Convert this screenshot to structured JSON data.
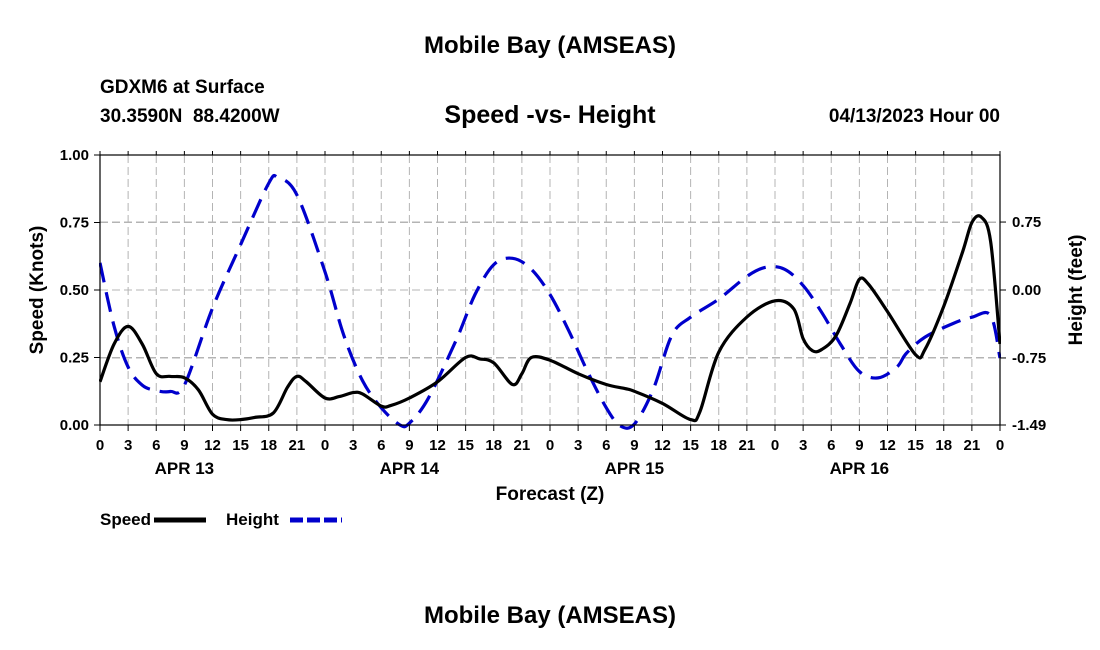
{
  "page": {
    "title_top": "Mobile Bay (AMSEAS)",
    "title_bottom": "Mobile Bay (AMSEAS)",
    "station_line": "GDXM6 at Surface",
    "coords_line": "30.3590N  88.4200W",
    "date_line": "04/13/2023 Hour 00"
  },
  "chart_data": {
    "type": "line",
    "title": "Speed -vs- Height",
    "xlabel": "Forecast (Z)",
    "ylabel": "Speed (Knots)",
    "y2label": "Height (feet)",
    "xlim": [
      0,
      96
    ],
    "ylim": [
      0,
      1
    ],
    "y2lim": [
      -1.49,
      1.49
    ],
    "x_tick_labels": [
      "0",
      "3",
      "6",
      "9",
      "12",
      "15",
      "18",
      "21",
      "0",
      "3",
      "6",
      "9",
      "12",
      "15",
      "18",
      "21",
      "0",
      "3",
      "6",
      "9",
      "12",
      "15",
      "18",
      "21",
      "0",
      "3",
      "6",
      "9",
      "12",
      "15",
      "18",
      "21",
      "0"
    ],
    "date_labels": [
      {
        "label": "APR 13",
        "x": 9
      },
      {
        "label": "APR 14",
        "x": 33
      },
      {
        "label": "APR 15",
        "x": 57
      },
      {
        "label": "APR 16",
        "x": 81
      }
    ],
    "y_ticks": [
      "0.00",
      "0.25",
      "0.50",
      "0.75",
      "1.00"
    ],
    "y2_ticks": [
      "-1.49",
      "-0.75",
      "0.00",
      "0.75"
    ],
    "series": [
      {
        "name": "Speed",
        "axis": "left",
        "color": "#000000",
        "dash": "solid",
        "points": [
          [
            0,
            0.16
          ],
          [
            1.5,
            0.3
          ],
          [
            3,
            0.365
          ],
          [
            4.5,
            0.3
          ],
          [
            6,
            0.19
          ],
          [
            7.5,
            0.18
          ],
          [
            9,
            0.175
          ],
          [
            10.5,
            0.13
          ],
          [
            12,
            0.04
          ],
          [
            13.5,
            0.02
          ],
          [
            15,
            0.02
          ],
          [
            16.5,
            0.028
          ],
          [
            18.5,
            0.045
          ],
          [
            20,
            0.14
          ],
          [
            21,
            0.18
          ],
          [
            22,
            0.16
          ],
          [
            24,
            0.1
          ],
          [
            25.5,
            0.105
          ],
          [
            27,
            0.12
          ],
          [
            28,
            0.115
          ],
          [
            30,
            0.07
          ],
          [
            31,
            0.072
          ],
          [
            33,
            0.1
          ],
          [
            36,
            0.16
          ],
          [
            39,
            0.25
          ],
          [
            40.5,
            0.245
          ],
          [
            42,
            0.23
          ],
          [
            44,
            0.15
          ],
          [
            45,
            0.19
          ],
          [
            46,
            0.25
          ],
          [
            48,
            0.24
          ],
          [
            51,
            0.19
          ],
          [
            54,
            0.15
          ],
          [
            56,
            0.135
          ],
          [
            57,
            0.125
          ],
          [
            60,
            0.08
          ],
          [
            63,
            0.02
          ],
          [
            64,
            0.05
          ],
          [
            66,
            0.27
          ],
          [
            69,
            0.4
          ],
          [
            72,
            0.46
          ],
          [
            74,
            0.43
          ],
          [
            75,
            0.32
          ],
          [
            76,
            0.275
          ],
          [
            77,
            0.28
          ],
          [
            78.5,
            0.33
          ],
          [
            80,
            0.45
          ],
          [
            81,
            0.54
          ],
          [
            82,
            0.52
          ],
          [
            84,
            0.42
          ],
          [
            87,
            0.26
          ],
          [
            88,
            0.28
          ],
          [
            90,
            0.44
          ],
          [
            92,
            0.64
          ],
          [
            93,
            0.75
          ],
          [
            94,
            0.77
          ],
          [
            95,
            0.68
          ],
          [
            96,
            0.3
          ]
        ]
      },
      {
        "name": "Height",
        "axis": "right",
        "color": "#0000cc",
        "dash": "dashed",
        "points": [
          [
            0,
            0.3
          ],
          [
            1.5,
            -0.4
          ],
          [
            3,
            -0.85
          ],
          [
            4.5,
            -1.05
          ],
          [
            6,
            -1.11
          ],
          [
            7.5,
            -1.12
          ],
          [
            9,
            -1.05
          ],
          [
            12,
            -0.2
          ],
          [
            15,
            0.5
          ],
          [
            18,
            1.18
          ],
          [
            19,
            1.24
          ],
          [
            21,
            1.05
          ],
          [
            24,
            0.2
          ],
          [
            26,
            -0.5
          ],
          [
            28,
            -1.0
          ],
          [
            30,
            -1.3
          ],
          [
            32,
            -1.49
          ],
          [
            33,
            -1.47
          ],
          [
            35,
            -1.2
          ],
          [
            38,
            -0.55
          ],
          [
            40,
            -0.05
          ],
          [
            42,
            0.28
          ],
          [
            44,
            0.35
          ],
          [
            46,
            0.23
          ],
          [
            48,
            -0.05
          ],
          [
            50,
            -0.45
          ],
          [
            52,
            -0.9
          ],
          [
            54,
            -1.3
          ],
          [
            55.5,
            -1.5
          ],
          [
            57,
            -1.48
          ],
          [
            59,
            -1.1
          ],
          [
            61,
            -0.5
          ],
          [
            63,
            -0.3
          ],
          [
            66,
            -0.1
          ],
          [
            69,
            0.15
          ],
          [
            71,
            0.25
          ],
          [
            73,
            0.23
          ],
          [
            75,
            0.05
          ],
          [
            77,
            -0.25
          ],
          [
            79,
            -0.6
          ],
          [
            81,
            -0.9
          ],
          [
            83,
            -0.97
          ],
          [
            85,
            -0.85
          ],
          [
            86,
            -0.7
          ],
          [
            88,
            -0.52
          ],
          [
            91,
            -0.37
          ],
          [
            93,
            -0.3
          ],
          [
            95,
            -0.28
          ],
          [
            96,
            -0.75
          ]
        ]
      }
    ]
  }
}
